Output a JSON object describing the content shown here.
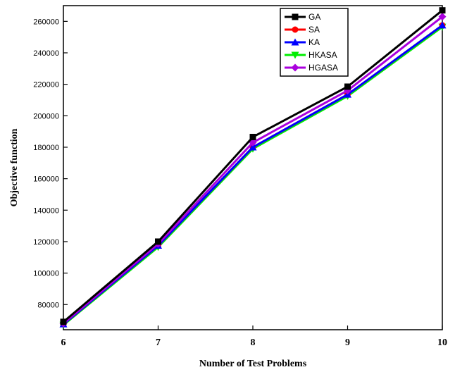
{
  "chart_data": {
    "type": "line",
    "title": "",
    "xlabel": "Number of Test Problems",
    "ylabel": "Objective function",
    "x": [
      6,
      7,
      8,
      9,
      10
    ],
    "xlim": [
      6,
      10
    ],
    "ylim": [
      64000,
      270000
    ],
    "yticks": [
      80000,
      100000,
      120000,
      140000,
      160000,
      180000,
      200000,
      220000,
      240000,
      260000
    ],
    "xticks": [
      6,
      7,
      8,
      9,
      10
    ],
    "xtick_labels": [
      "6",
      "7",
      "8",
      "9",
      "10"
    ],
    "ytick_labels": [
      "80000",
      "100000",
      "120000",
      "140000",
      "160000",
      "180000",
      "200000",
      "220000",
      "240000",
      "260000"
    ],
    "grid": false,
    "legend_position": "top-right",
    "series": [
      {
        "name": "GA",
        "color": "#000000",
        "marker": "square",
        "values": [
          69000,
          120000,
          186500,
          218500,
          267000
        ]
      },
      {
        "name": "SA",
        "color": "#ff0000",
        "marker": "circle",
        "values": [
          67500,
          117500,
          180000,
          213500,
          257500
        ]
      },
      {
        "name": "KA",
        "color": "#0000ff",
        "marker": "triangle-up",
        "values": [
          67500,
          117500,
          180000,
          213500,
          257500
        ]
      },
      {
        "name": "HKASA",
        "color": "#00ee00",
        "marker": "triangle-down",
        "values": [
          67000,
          116500,
          179000,
          212500,
          256500
        ]
      },
      {
        "name": "HGASA",
        "color": "#aa00dd",
        "marker": "diamond",
        "values": [
          68000,
          118500,
          183000,
          216000,
          263000
        ]
      }
    ]
  }
}
